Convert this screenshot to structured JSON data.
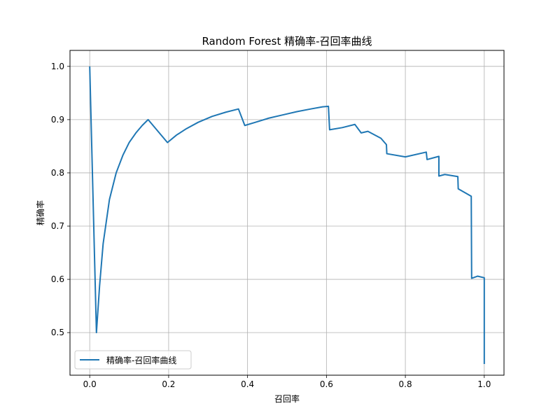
{
  "chart_data": {
    "type": "line",
    "title": "Random Forest 精确率-召回率曲线",
    "xlabel": "召回率",
    "ylabel": "精确率",
    "xlim": [
      -0.05,
      1.05
    ],
    "ylim": [
      0.42,
      1.03
    ],
    "grid": true,
    "x_ticks": [
      {
        "value": 0.0,
        "label": "0.0"
      },
      {
        "value": 0.2,
        "label": "0.2"
      },
      {
        "value": 0.4,
        "label": "0.4"
      },
      {
        "value": 0.6,
        "label": "0.6"
      },
      {
        "value": 0.8,
        "label": "0.8"
      },
      {
        "value": 1.0,
        "label": "1.0"
      }
    ],
    "y_ticks": [
      {
        "value": 0.5,
        "label": "0.5"
      },
      {
        "value": 0.6,
        "label": "0.6"
      },
      {
        "value": 0.7,
        "label": "0.7"
      },
      {
        "value": 0.8,
        "label": "0.8"
      },
      {
        "value": 0.9,
        "label": "0.9"
      },
      {
        "value": 1.0,
        "label": "1.0"
      }
    ],
    "legend_position": "lower-left",
    "series": [
      {
        "name": "精确率-召回率曲线",
        "color": "#1f77b4",
        "x": [
          0.0,
          0.017,
          0.025,
          0.034,
          0.05,
          0.067,
          0.084,
          0.1,
          0.117,
          0.133,
          0.148,
          0.197,
          0.22,
          0.245,
          0.275,
          0.31,
          0.345,
          0.377,
          0.393,
          0.42,
          0.455,
          0.49,
          0.525,
          0.56,
          0.59,
          0.605,
          0.608,
          0.64,
          0.672,
          0.688,
          0.705,
          0.738,
          0.752,
          0.753,
          0.8,
          0.853,
          0.855,
          0.87,
          0.885,
          0.885,
          0.9,
          0.933,
          0.934,
          0.967,
          0.968,
          0.983,
          1.0,
          1.0
        ],
        "y": [
          1.0,
          0.5,
          0.588,
          0.667,
          0.75,
          0.8,
          0.833,
          0.857,
          0.875,
          0.889,
          0.9,
          0.857,
          0.871,
          0.883,
          0.895,
          0.906,
          0.914,
          0.92,
          0.889,
          0.895,
          0.903,
          0.909,
          0.915,
          0.92,
          0.924,
          0.925,
          0.881,
          0.885,
          0.891,
          0.875,
          0.878,
          0.865,
          0.853,
          0.836,
          0.83,
          0.839,
          0.825,
          0.828,
          0.831,
          0.794,
          0.797,
          0.793,
          0.77,
          0.756,
          0.602,
          0.606,
          0.603,
          0.441
        ]
      }
    ]
  }
}
